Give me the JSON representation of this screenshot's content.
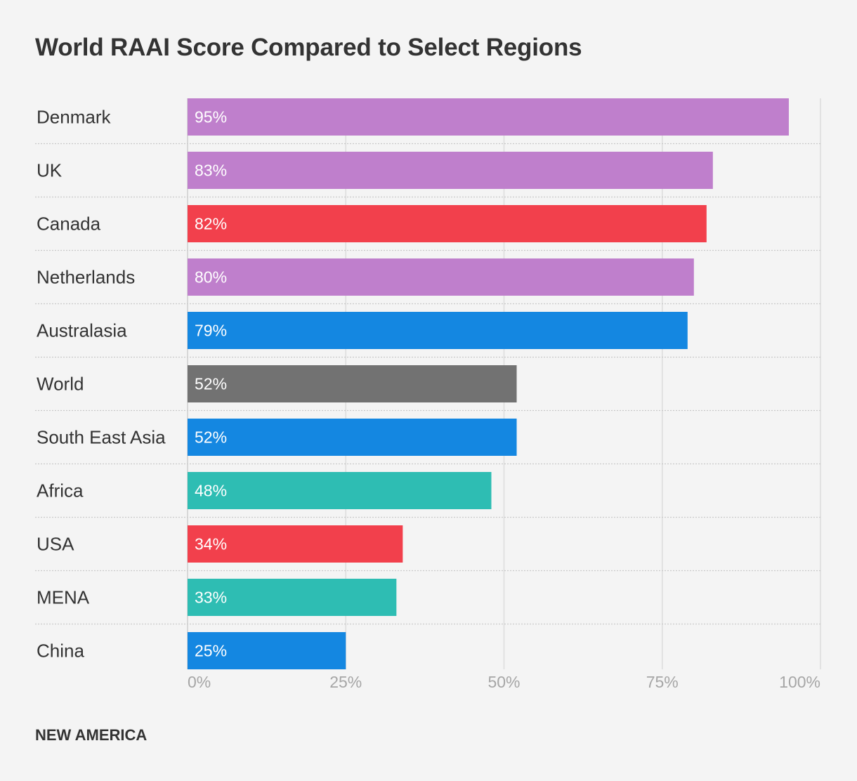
{
  "chart_data": {
    "type": "bar",
    "orientation": "horizontal",
    "title": "World RAAI Score Compared to Select Regions",
    "categories": [
      "Denmark",
      "UK",
      "Canada",
      "Netherlands",
      "Australasia",
      "World",
      "South East Asia",
      "Africa",
      "USA",
      "MENA",
      "China"
    ],
    "values": [
      95,
      83,
      82,
      80,
      79,
      52,
      52,
      48,
      34,
      33,
      25
    ],
    "value_labels": [
      "95%",
      "83%",
      "82%",
      "80%",
      "79%",
      "52%",
      "52%",
      "48%",
      "34%",
      "33%",
      "25%"
    ],
    "bar_colors": [
      "#bf7fcc",
      "#bf7fcc",
      "#f2404c",
      "#bf7fcc",
      "#1487e1",
      "#727272",
      "#1487e1",
      "#2ebdb3",
      "#f2404c",
      "#2ebdb3",
      "#1487e1"
    ],
    "xlim": [
      0,
      100
    ],
    "x_ticks": [
      0,
      25,
      50,
      75,
      100
    ],
    "x_tick_labels": [
      "0%",
      "25%",
      "50%",
      "75%",
      "100%"
    ],
    "xlabel": "",
    "ylabel": "",
    "grid": true
  },
  "footer": {
    "brand": "NEW AMERICA"
  }
}
